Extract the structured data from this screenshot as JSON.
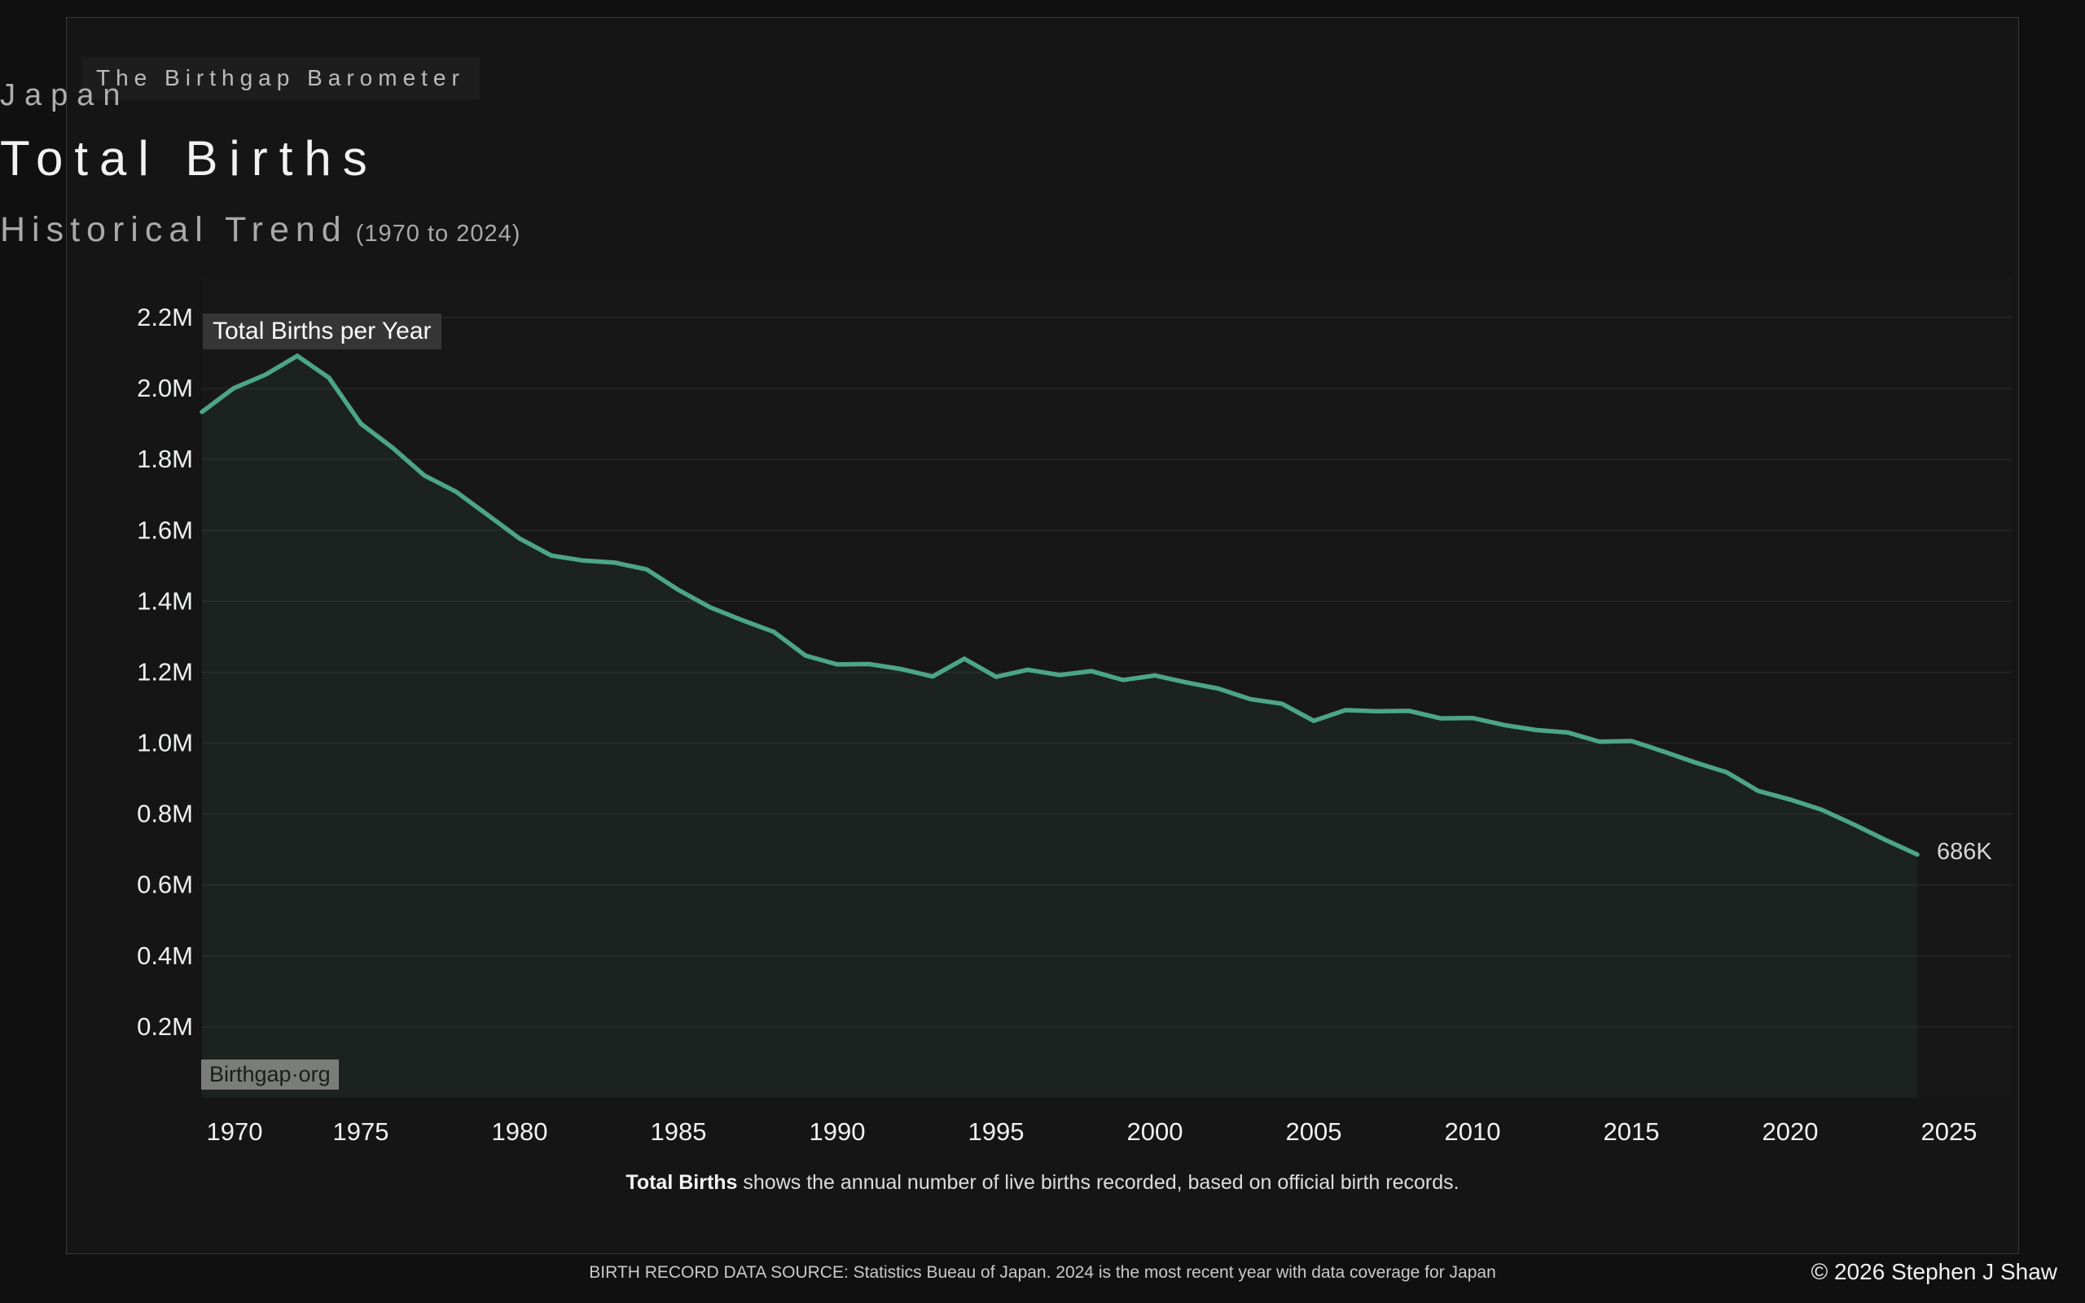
{
  "brand": {
    "label": "The Birthgap Barometer"
  },
  "header": {
    "country": "Japan",
    "title": "Total Births",
    "subtitle": "Historical Trend",
    "range": "(1970 to 2024)"
  },
  "chart_data": {
    "type": "area",
    "title": "Total Births per Year",
    "series_name": "Total Births per Year",
    "x": [
      1970,
      1971,
      1972,
      1973,
      1974,
      1975,
      1976,
      1977,
      1978,
      1979,
      1980,
      1981,
      1982,
      1983,
      1984,
      1985,
      1986,
      1987,
      1988,
      1989,
      1990,
      1991,
      1992,
      1993,
      1994,
      1995,
      1996,
      1997,
      1998,
      1999,
      2000,
      2001,
      2002,
      2003,
      2004,
      2005,
      2006,
      2007,
      2008,
      2009,
      2010,
      2011,
      2012,
      2013,
      2014,
      2015,
      2016,
      2017,
      2018,
      2019,
      2020,
      2021,
      2022,
      2023,
      2024
    ],
    "values_thousands": [
      1934,
      2001,
      2039,
      2092,
      2030,
      1901,
      1833,
      1755,
      1709,
      1643,
      1577,
      1529,
      1515,
      1509,
      1490,
      1432,
      1383,
      1347,
      1314,
      1247,
      1222,
      1223,
      1209,
      1188,
      1238,
      1187,
      1207,
      1192,
      1203,
      1178,
      1191,
      1171,
      1154,
      1124,
      1111,
      1063,
      1093,
      1090,
      1091,
      1070,
      1071,
      1051,
      1037,
      1030,
      1004,
      1006,
      977,
      946,
      918,
      865,
      841,
      812,
      771,
      727,
      686
    ],
    "end_point_label": "686K",
    "watermark": "Birthgap·org",
    "ylim_millions": [
      0,
      2.2
    ],
    "y_ticks": [
      {
        "value": 0.2,
        "label": "0.2M"
      },
      {
        "value": 0.4,
        "label": "0.4M"
      },
      {
        "value": 0.6,
        "label": "0.6M"
      },
      {
        "value": 0.8,
        "label": "0.8M"
      },
      {
        "value": 1.0,
        "label": "1.0M"
      },
      {
        "value": 1.2,
        "label": "1.2M"
      },
      {
        "value": 1.4,
        "label": "1.4M"
      },
      {
        "value": 1.6,
        "label": "1.6M"
      },
      {
        "value": 1.8,
        "label": "1.8M"
      },
      {
        "value": 2.0,
        "label": "2.0M"
      },
      {
        "value": 2.2,
        "label": "2.2M"
      }
    ],
    "x_ticks": [
      {
        "value": 1970,
        "label": "1970"
      },
      {
        "value": 1975,
        "label": "1975"
      },
      {
        "value": 1980,
        "label": "1980"
      },
      {
        "value": 1985,
        "label": "1985"
      },
      {
        "value": 1990,
        "label": "1990"
      },
      {
        "value": 1995,
        "label": "1995"
      },
      {
        "value": 2000,
        "label": "2000"
      },
      {
        "value": 2005,
        "label": "2005"
      },
      {
        "value": 2010,
        "label": "2010"
      },
      {
        "value": 2015,
        "label": "2015"
      },
      {
        "value": 2020,
        "label": "2020"
      },
      {
        "value": 2025,
        "label": "2025"
      }
    ],
    "grid": "horizontal",
    "legend_position": "top-left-annotation",
    "line_color": "#4CA586",
    "area_fill": "rgba(77,165,133,0.08)",
    "plot_background": "#171718",
    "gridline_color": "#262629"
  },
  "caption": {
    "term": "Total Births",
    "text": " shows the annual number of live births recorded, based on official birth records."
  },
  "footer": {
    "source": "BIRTH RECORD DATA SOURCE: Statistics Bueau of Japan. 2024 is the most recent year with data coverage for Japan",
    "copyright": "© 2026 Stephen J Shaw"
  }
}
